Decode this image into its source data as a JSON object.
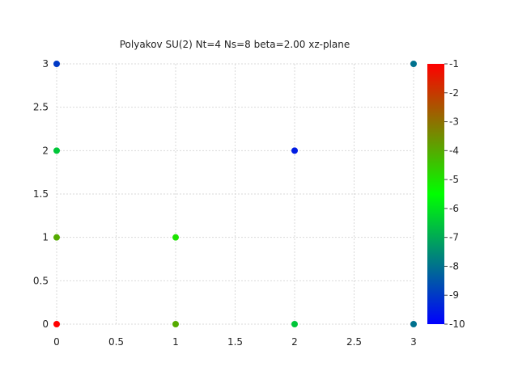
{
  "chart_data": {
    "type": "scatter",
    "title": "Polyakov SU(2) Nt=4 Ns=8 beta=2.00 xz-plane",
    "xlabel": "",
    "ylabel": "",
    "xlim": [
      0,
      3
    ],
    "ylim": [
      0,
      3
    ],
    "x_ticks": [
      "0",
      "0.5",
      "1",
      "1.5",
      "2",
      "2.5",
      "3"
    ],
    "y_ticks": [
      "0",
      "0.5",
      "1",
      "1.5",
      "2",
      "2.5",
      "3"
    ],
    "grid": true,
    "points": [
      {
        "x": 0,
        "y": 3,
        "value": -9
      },
      {
        "x": 3,
        "y": 3,
        "value": -8
      },
      {
        "x": 0,
        "y": 2,
        "value": -6.5
      },
      {
        "x": 2,
        "y": 2,
        "value": -9.5
      },
      {
        "x": 0,
        "y": 1,
        "value": -4
      },
      {
        "x": 1,
        "y": 1,
        "value": -5
      },
      {
        "x": 0,
        "y": 0,
        "value": -1
      },
      {
        "x": 1,
        "y": 0,
        "value": -4
      },
      {
        "x": 2,
        "y": 0,
        "value": -6.5
      },
      {
        "x": 3,
        "y": 0,
        "value": -8
      }
    ],
    "colorbar": {
      "min": -10,
      "max": -1,
      "ticks": [
        "-1",
        "-2",
        "-3",
        "-4",
        "-5",
        "-6",
        "-7",
        "-8",
        "-9",
        "-10"
      ],
      "colors": [
        "#0000ff",
        "#00ff00",
        "#ff0000"
      ],
      "position": "right"
    }
  }
}
